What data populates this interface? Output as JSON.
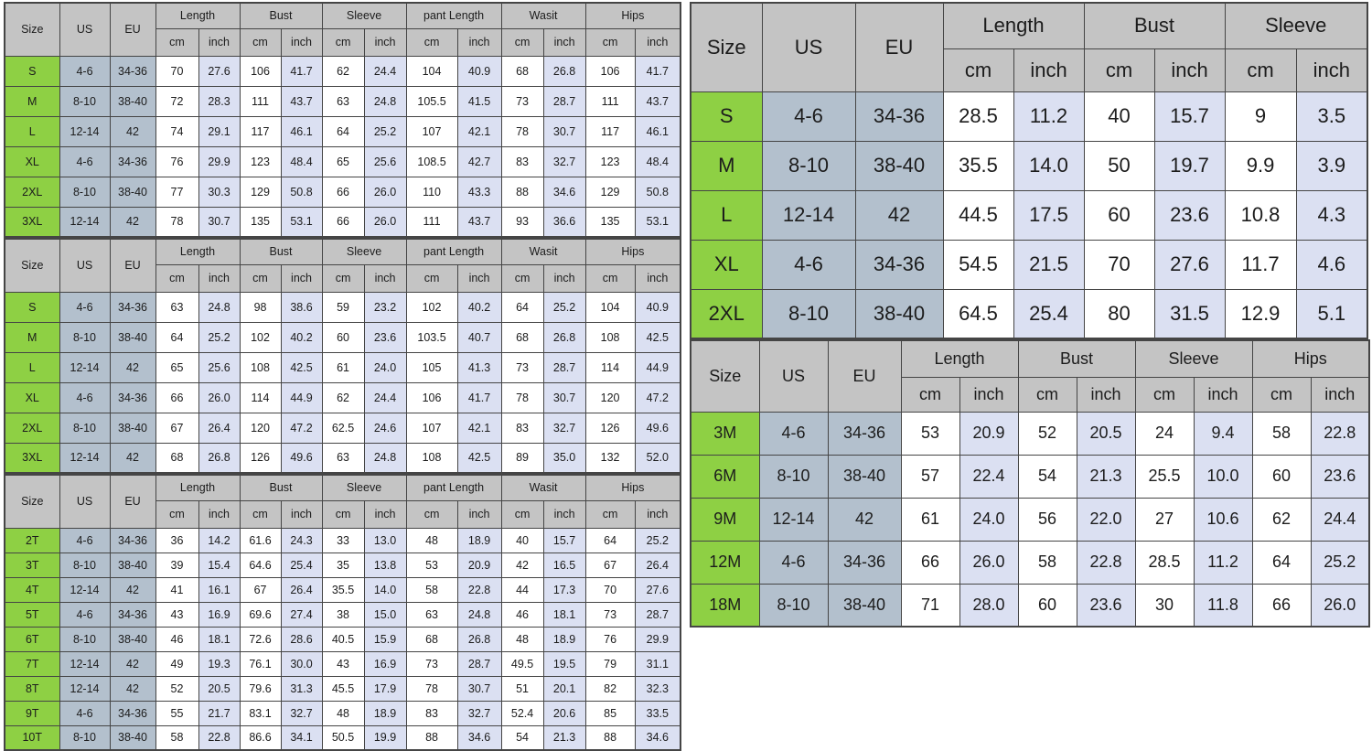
{
  "colors": {
    "header_bg": "#c4c4c4",
    "size_col_bg": "#8ed044",
    "us_eu_col_bg": "#b3c0cd",
    "inch_col_bg": "#dbe0f2",
    "cm_col_bg": "#ffffff",
    "border": "#454545",
    "text": "#1c1c1c"
  },
  "tables": [
    {
      "name": "adult-set-chart-1",
      "headers": {
        "size": "Size",
        "us": "US",
        "eu": "EU",
        "groups": [
          "Length",
          "Bust",
          "Sleeve",
          "pant Length",
          "Wasit",
          "Hips"
        ],
        "units": [
          "cm",
          "inch"
        ]
      },
      "rows": [
        {
          "size": "S",
          "us": "4-6",
          "eu": "34-36",
          "values": [
            "70",
            "27.6",
            "106",
            "41.7",
            "62",
            "24.4",
            "104",
            "40.9",
            "68",
            "26.8",
            "106",
            "41.7"
          ]
        },
        {
          "size": "M",
          "us": "8-10",
          "eu": "38-40",
          "values": [
            "72",
            "28.3",
            "111",
            "43.7",
            "63",
            "24.8",
            "105.5",
            "41.5",
            "73",
            "28.7",
            "111",
            "43.7"
          ]
        },
        {
          "size": "L",
          "us": "12-14",
          "eu": "42",
          "values": [
            "74",
            "29.1",
            "117",
            "46.1",
            "64",
            "25.2",
            "107",
            "42.1",
            "78",
            "30.7",
            "117",
            "46.1"
          ]
        },
        {
          "size": "XL",
          "us": "4-6",
          "eu": "34-36",
          "values": [
            "76",
            "29.9",
            "123",
            "48.4",
            "65",
            "25.6",
            "108.5",
            "42.7",
            "83",
            "32.7",
            "123",
            "48.4"
          ]
        },
        {
          "size": "2XL",
          "us": "8-10",
          "eu": "38-40",
          "values": [
            "77",
            "30.3",
            "129",
            "50.8",
            "66",
            "26.0",
            "110",
            "43.3",
            "88",
            "34.6",
            "129",
            "50.8"
          ]
        },
        {
          "size": "3XL",
          "us": "12-14",
          "eu": "42",
          "values": [
            "78",
            "30.7",
            "135",
            "53.1",
            "66",
            "26.0",
            "111",
            "43.7",
            "93",
            "36.6",
            "135",
            "53.1"
          ]
        }
      ]
    },
    {
      "name": "adult-set-chart-2",
      "headers": {
        "size": "Size",
        "us": "US",
        "eu": "EU",
        "groups": [
          "Length",
          "Bust",
          "Sleeve",
          "pant Length",
          "Wasit",
          "Hips"
        ],
        "units": [
          "cm",
          "inch"
        ]
      },
      "rows": [
        {
          "size": "S",
          "us": "4-6",
          "eu": "34-36",
          "values": [
            "63",
            "24.8",
            "98",
            "38.6",
            "59",
            "23.2",
            "102",
            "40.2",
            "64",
            "25.2",
            "104",
            "40.9"
          ]
        },
        {
          "size": "M",
          "us": "8-10",
          "eu": "38-40",
          "values": [
            "64",
            "25.2",
            "102",
            "40.2",
            "60",
            "23.6",
            "103.5",
            "40.7",
            "68",
            "26.8",
            "108",
            "42.5"
          ]
        },
        {
          "size": "L",
          "us": "12-14",
          "eu": "42",
          "values": [
            "65",
            "25.6",
            "108",
            "42.5",
            "61",
            "24.0",
            "105",
            "41.3",
            "73",
            "28.7",
            "114",
            "44.9"
          ]
        },
        {
          "size": "XL",
          "us": "4-6",
          "eu": "34-36",
          "values": [
            "66",
            "26.0",
            "114",
            "44.9",
            "62",
            "24.4",
            "106",
            "41.7",
            "78",
            "30.7",
            "120",
            "47.2"
          ]
        },
        {
          "size": "2XL",
          "us": "8-10",
          "eu": "38-40",
          "values": [
            "67",
            "26.4",
            "120",
            "47.2",
            "62.5",
            "24.6",
            "107",
            "42.1",
            "83",
            "32.7",
            "126",
            "49.6"
          ]
        },
        {
          "size": "3XL",
          "us": "12-14",
          "eu": "42",
          "values": [
            "68",
            "26.8",
            "126",
            "49.6",
            "63",
            "24.8",
            "108",
            "42.5",
            "89",
            "35.0",
            "132",
            "52.0"
          ]
        }
      ]
    },
    {
      "name": "toddler-set-chart",
      "headers": {
        "size": "Size",
        "us": "US",
        "eu": "EU",
        "groups": [
          "Length",
          "Bust",
          "Sleeve",
          "pant Length",
          "Wasit",
          "Hips"
        ],
        "units": [
          "cm",
          "inch"
        ]
      },
      "rows": [
        {
          "size": "2T",
          "us": "4-6",
          "eu": "34-36",
          "values": [
            "36",
            "14.2",
            "61.6",
            "24.3",
            "33",
            "13.0",
            "48",
            "18.9",
            "40",
            "15.7",
            "64",
            "25.2"
          ]
        },
        {
          "size": "3T",
          "us": "8-10",
          "eu": "38-40",
          "values": [
            "39",
            "15.4",
            "64.6",
            "25.4",
            "35",
            "13.8",
            "53",
            "20.9",
            "42",
            "16.5",
            "67",
            "26.4"
          ]
        },
        {
          "size": "4T",
          "us": "12-14",
          "eu": "42",
          "values": [
            "41",
            "16.1",
            "67",
            "26.4",
            "35.5",
            "14.0",
            "58",
            "22.8",
            "44",
            "17.3",
            "70",
            "27.6"
          ]
        },
        {
          "size": "5T",
          "us": "4-6",
          "eu": "34-36",
          "values": [
            "43",
            "16.9",
            "69.6",
            "27.4",
            "38",
            "15.0",
            "63",
            "24.8",
            "46",
            "18.1",
            "73",
            "28.7"
          ]
        },
        {
          "size": "6T",
          "us": "8-10",
          "eu": "38-40",
          "values": [
            "46",
            "18.1",
            "72.6",
            "28.6",
            "40.5",
            "15.9",
            "68",
            "26.8",
            "48",
            "18.9",
            "76",
            "29.9"
          ]
        },
        {
          "size": "7T",
          "us": "12-14",
          "eu": "42",
          "values": [
            "49",
            "19.3",
            "76.1",
            "30.0",
            "43",
            "16.9",
            "73",
            "28.7",
            "49.5",
            "19.5",
            "79",
            "31.1"
          ]
        },
        {
          "size": "8T",
          "us": "12-14",
          "eu": "42",
          "values": [
            "52",
            "20.5",
            "79.6",
            "31.3",
            "45.5",
            "17.9",
            "78",
            "30.7",
            "51",
            "20.1",
            "82",
            "32.3"
          ]
        },
        {
          "size": "9T",
          "us": "4-6",
          "eu": "34-36",
          "values": [
            "55",
            "21.7",
            "83.1",
            "32.7",
            "48",
            "18.9",
            "83",
            "32.7",
            "52.4",
            "20.6",
            "85",
            "33.5"
          ]
        },
        {
          "size": "10T",
          "us": "8-10",
          "eu": "38-40",
          "values": [
            "58",
            "22.8",
            "86.6",
            "34.1",
            "50.5",
            "19.9",
            "88",
            "34.6",
            "54",
            "21.3",
            "88",
            "34.6"
          ]
        }
      ]
    },
    {
      "name": "adult-top-chart",
      "headers": {
        "size": "Size",
        "us": "US",
        "eu": "EU",
        "groups": [
          "Length",
          "Bust",
          "Sleeve"
        ],
        "units": [
          "cm",
          "inch"
        ]
      },
      "rows": [
        {
          "size": "S",
          "us": "4-6",
          "eu": "34-36",
          "values": [
            "28.5",
            "11.2",
            "40",
            "15.7",
            "9",
            "3.5"
          ]
        },
        {
          "size": "M",
          "us": "8-10",
          "eu": "38-40",
          "values": [
            "35.5",
            "14.0",
            "50",
            "19.7",
            "9.9",
            "3.9"
          ]
        },
        {
          "size": "L",
          "us": "12-14",
          "eu": "42",
          "values": [
            "44.5",
            "17.5",
            "60",
            "23.6",
            "10.8",
            "4.3"
          ]
        },
        {
          "size": "XL",
          "us": "4-6",
          "eu": "34-36",
          "values": [
            "54.5",
            "21.5",
            "70",
            "27.6",
            "11.7",
            "4.6"
          ]
        },
        {
          "size": "2XL",
          "us": "8-10",
          "eu": "38-40",
          "values": [
            "64.5",
            "25.4",
            "80",
            "31.5",
            "12.9",
            "5.1"
          ]
        }
      ]
    },
    {
      "name": "baby-months-chart",
      "headers": {
        "size": "Size",
        "us": "US",
        "eu": "EU",
        "groups": [
          "Length",
          "Bust",
          "Sleeve",
          "Hips"
        ],
        "units": [
          "cm",
          "inch"
        ]
      },
      "rows": [
        {
          "size": "3M",
          "us": "4-6",
          "eu": "34-36",
          "values": [
            "53",
            "20.9",
            "52",
            "20.5",
            "24",
            "9.4",
            "58",
            "22.8"
          ]
        },
        {
          "size": "6M",
          "us": "8-10",
          "eu": "38-40",
          "values": [
            "57",
            "22.4",
            "54",
            "21.3",
            "25.5",
            "10.0",
            "60",
            "23.6"
          ]
        },
        {
          "size": "9M",
          "us": "12-14",
          "eu": "42",
          "values": [
            "61",
            "24.0",
            "56",
            "22.0",
            "27",
            "10.6",
            "62",
            "24.4"
          ]
        },
        {
          "size": "12M",
          "us": "4-6",
          "eu": "34-36",
          "values": [
            "66",
            "26.0",
            "58",
            "22.8",
            "28.5",
            "11.2",
            "64",
            "25.2"
          ]
        },
        {
          "size": "18M",
          "us": "8-10",
          "eu": "38-40",
          "values": [
            "71",
            "28.0",
            "60",
            "23.6",
            "30",
            "11.8",
            "66",
            "26.0"
          ]
        }
      ]
    }
  ]
}
